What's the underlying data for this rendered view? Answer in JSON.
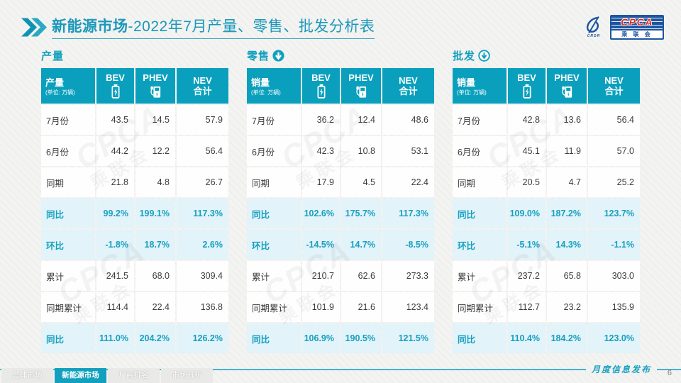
{
  "header": {
    "title_bold": "新能源市场",
    "title_rest": "-2022年7月产量、零售、批发分析表"
  },
  "logo": {
    "cpca": "CPCA",
    "association": "乘 联 会",
    "swirl_caption": "CRDR"
  },
  "watermark": {
    "line1": "CPCA",
    "line2": "乘联会"
  },
  "colors": {
    "teal": "#12A0BE",
    "header_cell": "#0AA0BD",
    "highlight_bg": "#E2F3F9",
    "logo_blue": "#1E55A0",
    "cpca_red": "#D42B26"
  },
  "tables": [
    {
      "section": "产量",
      "arrow": "none",
      "header": {
        "metric": "产量",
        "unit": "(单位: 万辆)",
        "col_bev": "BEV",
        "col_phev": "PHEV",
        "col_nev_line1": "NEV",
        "col_nev_line2": "合计"
      },
      "rows": [
        {
          "label": "7月份",
          "values": [
            "43.5",
            "14.5",
            "57.9"
          ],
          "highlight": false
        },
        {
          "label": "6月份",
          "values": [
            "44.2",
            "12.2",
            "56.4"
          ],
          "highlight": false
        },
        {
          "label": "同期",
          "values": [
            "21.8",
            "4.8",
            "26.7"
          ],
          "highlight": false
        },
        {
          "label": "同比",
          "values": [
            "99.2%",
            "199.1%",
            "117.3%"
          ],
          "highlight": true
        },
        {
          "label": "环比",
          "values": [
            "-1.8%",
            "18.7%",
            "2.6%"
          ],
          "highlight": true
        },
        {
          "label": "累计",
          "values": [
            "241.5",
            "68.0",
            "309.4"
          ],
          "highlight": false
        },
        {
          "label": "同期累计",
          "values": [
            "114.4",
            "22.4",
            "136.8"
          ],
          "highlight": false
        },
        {
          "label": "同比",
          "values": [
            "111.0%",
            "204.2%",
            "126.2%"
          ],
          "highlight": true
        }
      ]
    },
    {
      "section": "零售",
      "arrow": "solid",
      "header": {
        "metric": "销量",
        "unit": "(单位: 万辆)",
        "col_bev": "BEV",
        "col_phev": "PHEV",
        "col_nev_line1": "NEV",
        "col_nev_line2": "合计"
      },
      "rows": [
        {
          "label": "7月份",
          "values": [
            "36.2",
            "12.4",
            "48.6"
          ],
          "highlight": false
        },
        {
          "label": "6月份",
          "values": [
            "42.3",
            "10.8",
            "53.1"
          ],
          "highlight": false
        },
        {
          "label": "同期",
          "values": [
            "17.9",
            "4.5",
            "22.4"
          ],
          "highlight": false
        },
        {
          "label": "同比",
          "values": [
            "102.6%",
            "175.7%",
            "117.3%"
          ],
          "highlight": true
        },
        {
          "label": "环比",
          "values": [
            "-14.5%",
            "14.7%",
            "-8.5%"
          ],
          "highlight": true
        },
        {
          "label": "累计",
          "values": [
            "210.7",
            "62.6",
            "273.3"
          ],
          "highlight": false
        },
        {
          "label": "同期累计",
          "values": [
            "101.9",
            "21.6",
            "123.4"
          ],
          "highlight": false
        },
        {
          "label": "同比",
          "values": [
            "106.9%",
            "190.5%",
            "121.5%"
          ],
          "highlight": true
        }
      ]
    },
    {
      "section": "批发",
      "arrow": "outline",
      "header": {
        "metric": "销量",
        "unit": "(单位: 万辆)",
        "col_bev": "BEV",
        "col_phev": "PHEV",
        "col_nev_line1": "NEV",
        "col_nev_line2": "合计"
      },
      "rows": [
        {
          "label": "7月份",
          "values": [
            "42.8",
            "13.6",
            "56.4"
          ],
          "highlight": false
        },
        {
          "label": "6月份",
          "values": [
            "45.1",
            "11.9",
            "57.0"
          ],
          "highlight": false
        },
        {
          "label": "同期",
          "values": [
            "20.5",
            "4.7",
            "25.2"
          ],
          "highlight": false
        },
        {
          "label": "同比",
          "values": [
            "109.0%",
            "187.2%",
            "123.7%"
          ],
          "highlight": true
        },
        {
          "label": "环比",
          "values": [
            "-5.1%",
            "14.3%",
            "-1.1%"
          ],
          "highlight": true
        },
        {
          "label": "累计",
          "values": [
            "237.2",
            "65.8",
            "303.0"
          ],
          "highlight": false
        },
        {
          "label": "同期累计",
          "values": [
            "112.7",
            "23.2",
            "135.9"
          ],
          "highlight": false
        },
        {
          "label": "同比",
          "values": [
            "110.4%",
            "184.2%",
            "123.0%"
          ],
          "highlight": true
        }
      ]
    }
  ],
  "footer": {
    "tabs": [
      {
        "label": "总体市场",
        "active": false
      },
      {
        "label": "新能源市场",
        "active": true
      },
      {
        "label": "厂商排名",
        "active": false
      },
      {
        "label": "市场分析",
        "active": false
      }
    ],
    "note": "月度信息发布",
    "page": "6"
  }
}
